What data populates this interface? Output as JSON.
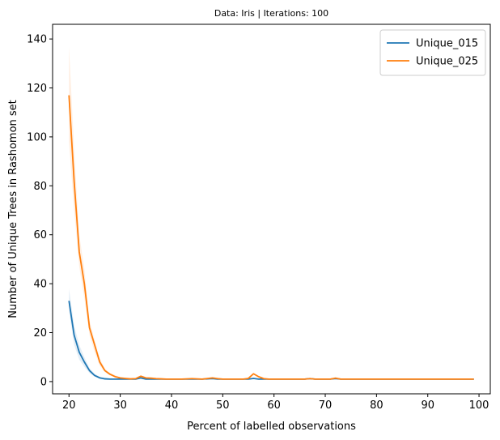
{
  "chart_data": {
    "type": "line",
    "title": "Data: Iris | Iterations: 100",
    "xlabel": "Percent of labelled observations",
    "ylabel": "Number of Unique Trees in Rashomon set",
    "xlim": [
      16.8,
      102.2
    ],
    "ylim": [
      -5,
      146
    ],
    "xticks": [
      20,
      30,
      40,
      50,
      60,
      70,
      80,
      90,
      100
    ],
    "yticks": [
      0,
      20,
      40,
      60,
      80,
      100,
      120,
      140
    ],
    "grid": false,
    "legend": "top-right",
    "series": [
      {
        "name": "Unique_015",
        "color": "#1f77b4",
        "x": [
          20,
          21,
          22,
          23,
          24,
          25,
          26,
          27,
          28,
          29,
          30,
          31,
          32,
          33,
          34,
          35,
          36,
          37,
          38,
          39,
          40,
          42,
          44,
          46,
          48,
          49,
          50,
          52,
          54,
          55,
          56,
          57,
          58,
          59,
          60,
          62,
          64,
          66,
          67,
          68,
          70,
          71,
          72,
          73,
          75,
          80,
          85,
          90,
          95,
          99
        ],
        "y": [
          33,
          19,
          12,
          8,
          4.5,
          2.5,
          1.5,
          1.1,
          1,
          1,
          1,
          1,
          1,
          1,
          1.5,
          1,
          1,
          1,
          1,
          1,
          1,
          1,
          1,
          1,
          1.2,
          1,
          1,
          1,
          1,
          1,
          1.3,
          1,
          1,
          1,
          1,
          1,
          1,
          1,
          1.2,
          1,
          1,
          1,
          1.2,
          1,
          1,
          1,
          1,
          1,
          1,
          1
        ],
        "band": [
          [
            20,
            29,
            38
          ],
          [
            21,
            15,
            23
          ],
          [
            22,
            9,
            15
          ],
          [
            23,
            6,
            10
          ],
          [
            24,
            3.5,
            5.5
          ],
          [
            25,
            2,
            3.2
          ],
          [
            26,
            1.2,
            2
          ],
          [
            28,
            1,
            1.4
          ],
          [
            30,
            1,
            1
          ]
        ]
      },
      {
        "name": "Unique_025",
        "color": "#ff7f0e",
        "x": [
          20,
          21,
          22,
          23,
          24,
          25,
          26,
          27,
          28,
          29,
          30,
          31,
          32,
          33,
          34,
          35,
          36,
          37,
          38,
          39,
          40,
          42,
          44,
          46,
          48,
          49,
          50,
          52,
          54,
          55,
          56,
          57,
          58,
          59,
          60,
          62,
          64,
          66,
          67,
          68,
          70,
          71,
          72,
          73,
          75,
          80,
          85,
          90,
          95,
          99
        ],
        "y": [
          117,
          82,
          53,
          40,
          22,
          15,
          8,
          4.5,
          3,
          2,
          1.5,
          1.3,
          1.1,
          1.2,
          2.2,
          1.5,
          1.4,
          1.2,
          1.1,
          1,
          1,
          1,
          1.2,
          1,
          1.5,
          1.2,
          1,
          1,
          1,
          1.3,
          3.2,
          2,
          1.2,
          1,
          1,
          1,
          1,
          1,
          1.2,
          1,
          1,
          1,
          1.4,
          1,
          1,
          1,
          1,
          1,
          1,
          1
        ],
        "band": [
          [
            20,
            98,
            137
          ],
          [
            21,
            70,
            95
          ],
          [
            22,
            47,
            60
          ],
          [
            23,
            34,
            46
          ],
          [
            24,
            19,
            25
          ],
          [
            25,
            12,
            17
          ],
          [
            26,
            6.5,
            9.5
          ],
          [
            27,
            3.8,
            5.3
          ],
          [
            28,
            2.5,
            3.5
          ],
          [
            30,
            1.2,
            1.8
          ]
        ]
      }
    ]
  }
}
